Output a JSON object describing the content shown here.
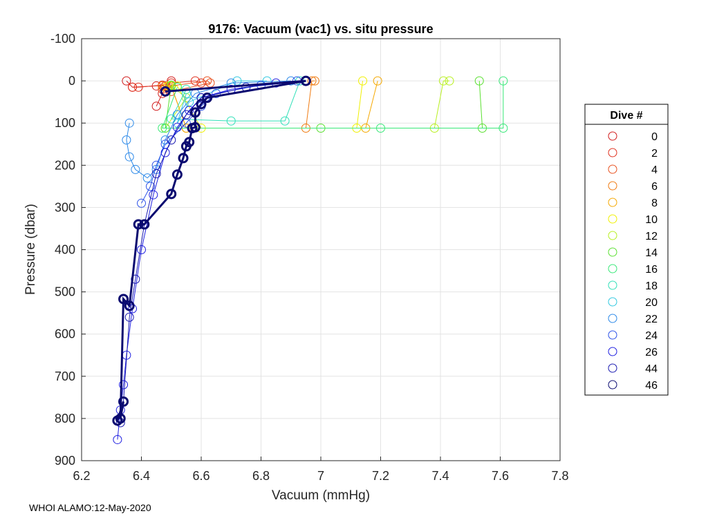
{
  "chart_data": {
    "type": "scatter",
    "title": "9176: Vacuum (vac1) vs. situ pressure",
    "xlabel": "Vacuum (mmHg)",
    "ylabel": "Pressure (dbar)",
    "xlim": [
      6.2,
      7.8
    ],
    "ylim": [
      -100,
      900
    ],
    "y_reversed": true,
    "grid": true,
    "xticks": [
      "6.2",
      "6.4",
      "6.6",
      "6.8",
      "7",
      "7.2",
      "7.4",
      "7.6",
      "7.8"
    ],
    "yticks": [
      "-100",
      "0",
      "100",
      "200",
      "300",
      "400",
      "500",
      "600",
      "700",
      "800",
      "900"
    ],
    "legend": {
      "title": "Dive #",
      "placement": "east-outside",
      "entries": [
        {
          "label": "0",
          "color": "#d11a1a"
        },
        {
          "label": "2",
          "color": "#e0301e"
        },
        {
          "label": "4",
          "color": "#e8501e"
        },
        {
          "label": "6",
          "color": "#f07a10"
        },
        {
          "label": "8",
          "color": "#f5a800"
        },
        {
          "label": "10",
          "color": "#f0f000"
        },
        {
          "label": "12",
          "color": "#b8f020"
        },
        {
          "label": "14",
          "color": "#5ae030"
        },
        {
          "label": "16",
          "color": "#38e878"
        },
        {
          "label": "18",
          "color": "#30e0b8"
        },
        {
          "label": "20",
          "color": "#30c8e0"
        },
        {
          "label": "22",
          "color": "#2a88e8"
        },
        {
          "label": "24",
          "color": "#2a50e8"
        },
        {
          "label": "26",
          "color": "#1e1ee0"
        },
        {
          "label": "44",
          "color": "#1818b0"
        },
        {
          "label": "46",
          "color": "#0a0a70"
        }
      ]
    },
    "series": [
      {
        "name": "0",
        "color": "#d11a1a",
        "x": [
          6.35,
          6.37,
          6.45,
          6.48,
          6.5,
          6.47,
          6.45
        ],
        "y": [
          0,
          15,
          12,
          12,
          0,
          30,
          60
        ]
      },
      {
        "name": "2",
        "color": "#e0301e",
        "x": [
          6.37,
          6.39,
          6.47,
          6.5,
          6.58,
          6.6
        ],
        "y": [
          15,
          15,
          10,
          5,
          0,
          5
        ]
      },
      {
        "name": "4",
        "color": "#e8501e",
        "x": [
          6.47,
          6.5,
          6.62,
          6.63,
          6.5
        ],
        "y": [
          20,
          12,
          0,
          5,
          25
        ]
      },
      {
        "name": "6",
        "color": "#f07a10",
        "x": [
          6.47,
          6.5,
          6.55,
          6.95,
          6.97,
          6.98
        ],
        "y": [
          12,
          12,
          112,
          112,
          0,
          0
        ]
      },
      {
        "name": "8",
        "color": "#f5a800",
        "x": [
          6.48,
          6.5,
          6.55,
          7.15,
          7.19
        ],
        "y": [
          15,
          12,
          112,
          112,
          0
        ]
      },
      {
        "name": "10",
        "color": "#f0f000",
        "x": [
          6.49,
          6.52,
          6.6,
          7.12,
          7.14
        ],
        "y": [
          12,
          12,
          112,
          112,
          0
        ]
      },
      {
        "name": "12",
        "color": "#b8f020",
        "x": [
          6.5,
          6.55,
          6.48,
          7.38,
          7.41,
          7.43
        ],
        "y": [
          12,
          40,
          112,
          112,
          0,
          0
        ]
      },
      {
        "name": "14",
        "color": "#5ae030",
        "x": [
          6.5,
          6.48,
          7.0,
          7.54,
          7.53
        ],
        "y": [
          10,
          112,
          112,
          112,
          0
        ]
      },
      {
        "name": "16",
        "color": "#38e878",
        "x": [
          6.52,
          6.47,
          7.2,
          7.61,
          7.61
        ],
        "y": [
          15,
          112,
          112,
          112,
          0
        ]
      },
      {
        "name": "18",
        "color": "#30e0b8",
        "x": [
          6.55,
          6.5,
          6.7,
          6.88,
          6.93,
          6.95
        ],
        "y": [
          20,
          90,
          95,
          95,
          0,
          0
        ]
      },
      {
        "name": "20",
        "color": "#30c8e0",
        "x": [
          6.55,
          6.52,
          6.56,
          6.72,
          6.82
        ],
        "y": [
          30,
          100,
          50,
          0,
          0
        ]
      },
      {
        "name": "22",
        "color": "#2a88e8",
        "x": [
          6.36,
          6.35,
          6.36,
          6.38,
          6.42,
          6.45,
          6.48,
          6.52,
          6.58,
          6.7,
          6.9
        ],
        "y": [
          100,
          140,
          180,
          210,
          230,
          210,
          140,
          80,
          30,
          5,
          0
        ]
      },
      {
        "name": "24",
        "color": "#2a50e8",
        "x": [
          6.4,
          6.43,
          6.45,
          6.48,
          6.55,
          6.6,
          6.65,
          6.8,
          6.92
        ],
        "y": [
          290,
          250,
          200,
          150,
          100,
          60,
          30,
          10,
          0
        ]
      },
      {
        "name": "26",
        "color": "#1e1ee0",
        "x": [
          6.32,
          6.33,
          6.34,
          6.35,
          6.37,
          6.4,
          6.44,
          6.48,
          6.52,
          6.56,
          6.6,
          6.7,
          6.85,
          6.95
        ],
        "y": [
          850,
          780,
          720,
          650,
          540,
          400,
          270,
          170,
          110,
          70,
          40,
          20,
          5,
          0
        ]
      },
      {
        "name": "44",
        "color": "#1818b0",
        "x": [
          6.33,
          6.34,
          6.36,
          6.38,
          6.41,
          6.45,
          6.5,
          6.55,
          6.6,
          6.75,
          6.95
        ],
        "y": [
          810,
          760,
          560,
          470,
          340,
          220,
          140,
          80,
          40,
          15,
          0
        ]
      },
      {
        "name": "46",
        "color": "#0a0a70",
        "x": [
          6.32,
          6.34,
          6.33,
          6.34,
          6.36,
          6.39,
          6.41,
          6.5,
          6.52,
          6.54,
          6.55,
          6.56,
          6.57,
          6.58,
          6.58,
          6.6,
          6.62,
          6.95,
          6.48
        ],
        "y": [
          805,
          760,
          800,
          517,
          533,
          340,
          340,
          268,
          222,
          183,
          155,
          145,
          112,
          110,
          75,
          55,
          40,
          0,
          25
        ]
      }
    ]
  },
  "footer": "WHOI ALAMO:12-May-2020"
}
